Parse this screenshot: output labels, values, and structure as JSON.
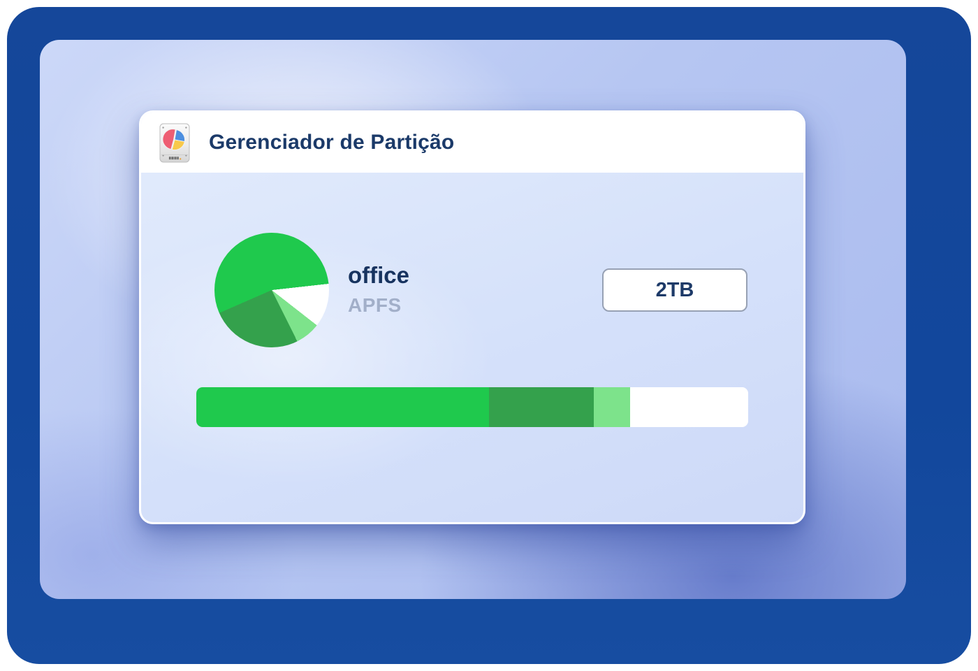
{
  "window": {
    "title": "Gerenciador de Partição",
    "app_icon": "disk-utility-icon"
  },
  "partition": {
    "name": "office",
    "filesystem": "APFS",
    "size_label": "2TB"
  },
  "colors": {
    "outer_background": "#12479C",
    "wallpaper_blue": "#B6C6F2",
    "card_body": "#D5E1FA",
    "header_white": "#FFFFFF",
    "title_navy": "#1B3A69",
    "name_navy": "#17335F",
    "filesystem_gray": "#A2AFC9",
    "size_box_border": "#97A1B4",
    "green_bright": "#1FC94D",
    "green_dark": "#34A14C",
    "green_light": "#7DE38B",
    "icon_pink": "#EE5E73",
    "icon_blue": "#4D8FE0",
    "icon_yellow": "#F8C94B"
  },
  "chart_data": [
    {
      "type": "pie",
      "title": "office partition usage (pie)",
      "start_angle_deg": 246.4,
      "segments": [
        {
          "label": "used-primary",
          "color": "#1FC94D",
          "percent": 54.8
        },
        {
          "label": "free",
          "color": "#FFFFFF",
          "percent": 12.3
        },
        {
          "label": "used-light",
          "color": "#7DE38B",
          "percent": 7.1
        },
        {
          "label": "used-dark",
          "color": "#34A14C",
          "percent": 25.8
        }
      ]
    },
    {
      "type": "bar",
      "title": "office partition usage (bar)",
      "segments": [
        {
          "label": "used-primary",
          "color": "#1FC94D",
          "percent": 53.0
        },
        {
          "label": "used-dark",
          "color": "#34A14C",
          "percent": 19.0
        },
        {
          "label": "used-light",
          "color": "#7DE38B",
          "percent": 6.6
        },
        {
          "label": "free",
          "color": "#FFFFFF",
          "percent": 21.4
        }
      ]
    }
  ]
}
